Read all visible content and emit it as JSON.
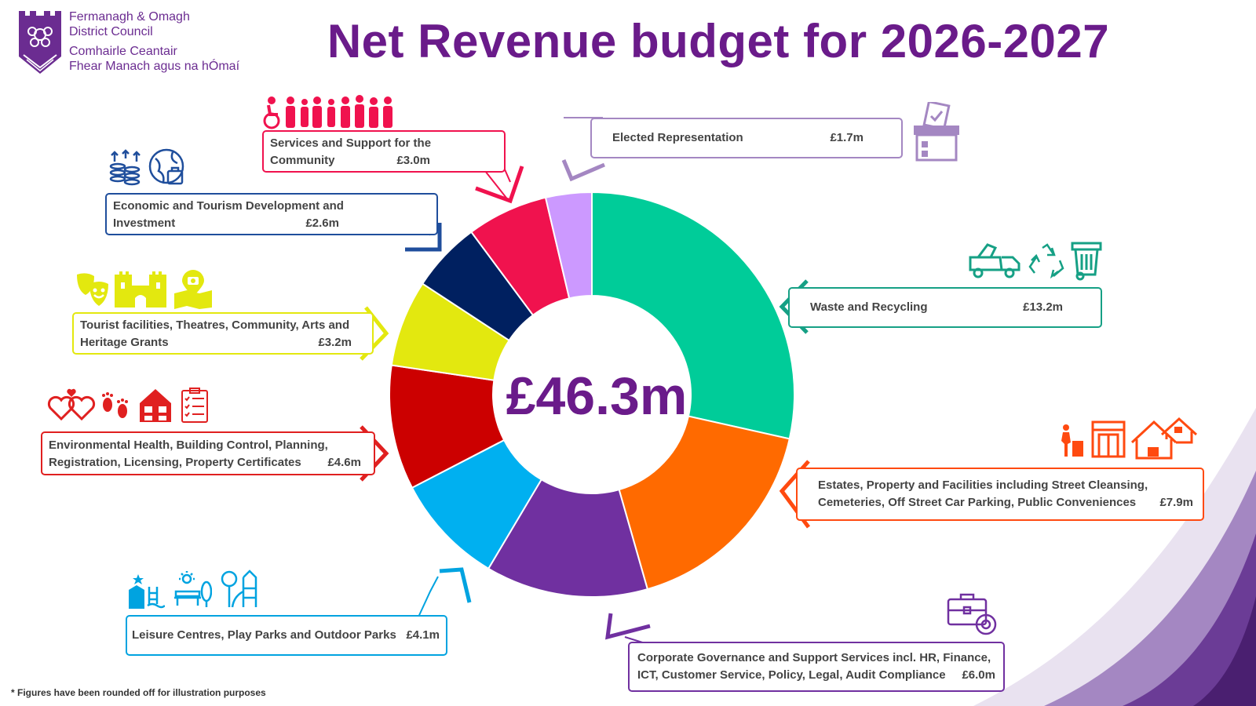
{
  "logo": {
    "line1": "Fermanagh & Omagh",
    "line2": "District Council",
    "line3": "Comhairle Ceantair",
    "line4": "Fhear Manach agus na hÓmaí"
  },
  "title": "Net Revenue budget for 2026-2027",
  "footnote": "* Figures have been rounded off for illustration purposes",
  "total": "£46.3m",
  "chart_data": {
    "type": "pie",
    "unit": "£m",
    "total_label": "£46.3m",
    "categories": [
      "Waste and Recycling",
      "Estates, Property and Facilities including Street Cleansing, Cemeteries, Off Street Car Parking, Public Conveniences",
      "Corporate Governance and Support Services incl. HR, Finance, ICT, Customer Service, Policy, Legal, Audit Compliance",
      "Leisure Centres, Play Parks and Outdoor Parks",
      "Environmental Health, Building Control, Planning, Registration, Licensing, Property Certificates",
      "Tourist facilities, Theatres, Community, Arts and Heritage Grants",
      "Economic and Tourism Development and Investment",
      "Services and Support for the Community",
      "Elected Representation"
    ],
    "values": [
      13.2,
      7.9,
      6.0,
      4.1,
      4.6,
      3.2,
      2.6,
      3.0,
      1.7
    ],
    "value_labels": [
      "£13.2m",
      "£7.9m",
      "£6.0m",
      "£4.1m",
      "£4.6m",
      "£3.2m",
      "£2.6m",
      "£3.0m",
      "£1.7m"
    ],
    "colors": [
      "#00cc99",
      "#ff6a00",
      "#7030a0",
      "#00b0f0",
      "#cc0000",
      "#e3e80f",
      "#002060",
      "#f0124e",
      "#cc99ff"
    ]
  },
  "labels": {
    "waste": {
      "text": "Waste and Recycling",
      "value": "£13.2m"
    },
    "estates": {
      "line1": "Estates, Property and Facilities including Street Cleansing,",
      "line2": "Cemeteries, Off Street Car Parking, Public Conveniences",
      "value": "£7.9m"
    },
    "corporate": {
      "line1": "Corporate Governance and Support Services incl. HR, Finance,",
      "line2": "ICT, Customer Service, Policy, Legal, Audit Compliance",
      "value": "£6.0m"
    },
    "leisure": {
      "text": "Leisure Centres, Play Parks and Outdoor Parks",
      "value": "£4.1m"
    },
    "envhealth": {
      "line1": "Environmental Health, Building Control, Planning,",
      "line2": "Registration, Licensing, Property Certificates",
      "value": "£4.6m"
    },
    "tourist": {
      "line1": "Tourist facilities, Theatres, Community, Arts and",
      "line2": "Heritage Grants",
      "value": "£3.2m"
    },
    "economic": {
      "line1": "Economic and Tourism Development and",
      "line2": "Investment",
      "value": "£2.6m"
    },
    "services": {
      "line1": "Services and Support for the",
      "line2": "Community",
      "value": "£3.0m"
    },
    "elected": {
      "text": "Elected Representation",
      "value": "£1.7m"
    }
  },
  "icons": [
    "council-crest-icon",
    "people-icon",
    "ballot-box-icon",
    "coins-icon",
    "globe-icon",
    "theatre-masks-icon",
    "castle-icon",
    "map-pin-icon",
    "bin-lorry-icon",
    "recycle-icon",
    "wheelie-bin-icon",
    "hearts-icon",
    "footprints-icon",
    "house-icon",
    "checklist-icon",
    "litter-icon",
    "shopfront-icon",
    "houses-icon",
    "swimming-icon",
    "park-bench-icon",
    "playground-icon",
    "briefcase-icon"
  ]
}
